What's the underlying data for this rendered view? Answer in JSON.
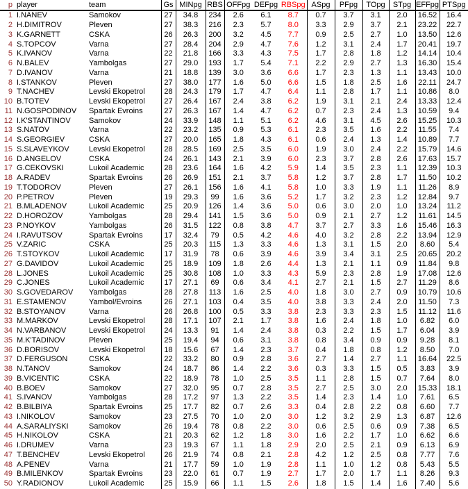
{
  "page": {
    "background": "#ffffff"
  },
  "colors": {
    "rank_text": "#993333",
    "highlight_column": "#ff0000",
    "body_text": "#000000",
    "grid_line": "#000000"
  },
  "table": {
    "headers": [
      "p",
      "player",
      "team",
      "Gs",
      "MINpg",
      "RBS",
      "OFFpg",
      "DEFpg",
      "RBSpg",
      "ASpg",
      "PFpg",
      "TOpg",
      "STpg",
      "EFFpg",
      "PTSpg"
    ],
    "highlighted_column": "RBSpg",
    "rows": [
      [
        "1",
        "I.NANEV",
        "Samokov",
        "27",
        "34.8",
        "234",
        "2.6",
        "6.1",
        "8.7",
        "0.7",
        "3.7",
        "3.1",
        "2.0",
        "16.52",
        "16.4"
      ],
      [
        "2",
        "H.DIMITROV",
        "Pleven",
        "27",
        "38.3",
        "216",
        "2.3",
        "5.7",
        "8.0",
        "3.3",
        "2.9",
        "3.7",
        "2.1",
        "23.22",
        "22.7"
      ],
      [
        "3",
        "K.GARNETT",
        "CSKA",
        "26",
        "26.3",
        "200",
        "3.2",
        "4.5",
        "7.7",
        "0.9",
        "2.5",
        "2.7",
        "1.0",
        "13.50",
        "12.6"
      ],
      [
        "4",
        "S.TOPCOV",
        "Varna",
        "27",
        "28.4",
        "204",
        "2.9",
        "4.7",
        "7.6",
        "1.2",
        "3.1",
        "2.4",
        "1.7",
        "20.41",
        "19.7"
      ],
      [
        "5",
        "K.IVANOV",
        "Varna",
        "22",
        "21.8",
        "166",
        "3.3",
        "4.3",
        "7.5",
        "1.7",
        "2.8",
        "1.8",
        "1.2",
        "14.14",
        "10.4"
      ],
      [
        "6",
        "N.BALEV",
        "Yambolgas",
        "27",
        "29.0",
        "193",
        "1.7",
        "5.4",
        "7.1",
        "2.2",
        "2.9",
        "2.7",
        "1.3",
        "16.30",
        "15.4"
      ],
      [
        "7",
        "D.IVANOV",
        "Varna",
        "21",
        "18.8",
        "139",
        "3.0",
        "3.6",
        "6.6",
        "1.7",
        "2.3",
        "1.3",
        "1.1",
        "13.43",
        "10.0"
      ],
      [
        "8",
        "I.STANKOV",
        "Pleven",
        "27",
        "38.0",
        "177",
        "1.6",
        "5.0",
        "6.6",
        "1.5",
        "1.8",
        "2.5",
        "1.6",
        "22.11",
        "24.7"
      ],
      [
        "9",
        "T.NACHEV",
        "Levski Ekopetrol",
        "28",
        "24.3",
        "179",
        "1.7",
        "4.7",
        "6.4",
        "1.1",
        "2.8",
        "1.7",
        "1.1",
        "10.86",
        "8.0"
      ],
      [
        "10",
        "B.TOTEV",
        "Levski Ekopetrol",
        "27",
        "26.4",
        "167",
        "2.4",
        "3.8",
        "6.2",
        "1.9",
        "3.1",
        "2.1",
        "2.4",
        "13.33",
        "12.4"
      ],
      [
        "11",
        "N.GOSPODINOV",
        "Spartak Evroins",
        "27",
        "26.3",
        "167",
        "1.4",
        "4.7",
        "6.2",
        "0.7",
        "2.3",
        "2.4",
        "1.3",
        "10.59",
        "9.4"
      ],
      [
        "12",
        "I.K'STANTINOV",
        "Samokov",
        "24",
        "33.9",
        "148",
        "1.1",
        "5.1",
        "6.2",
        "4.6",
        "3.1",
        "4.5",
        "2.6",
        "15.25",
        "10.3"
      ],
      [
        "13",
        "S.NATOV",
        "Varna",
        "22",
        "23.2",
        "135",
        "0.9",
        "5.3",
        "6.1",
        "2.3",
        "3.5",
        "1.6",
        "2.2",
        "11.55",
        "7.4"
      ],
      [
        "14",
        "S.GEORGIEV",
        "CSKA",
        "27",
        "20.0",
        "165",
        "1.8",
        "4.3",
        "6.1",
        "0.6",
        "2.4",
        "1.3",
        "1.4",
        "10.89",
        "7.7"
      ],
      [
        "15",
        "S.SLAVEYKOV",
        "Levski Ekopetrol",
        "28",
        "28.5",
        "169",
        "2.5",
        "3.5",
        "6.0",
        "1.9",
        "3.0",
        "2.4",
        "2.2",
        "15.79",
        "14.6"
      ],
      [
        "16",
        "D.ANGELOV",
        "CSKA",
        "24",
        "26.1",
        "143",
        "2.1",
        "3.9",
        "6.0",
        "2.3",
        "3.7",
        "2.8",
        "2.6",
        "17.63",
        "15.7"
      ],
      [
        "17",
        "G.CEKOVSKI",
        "Lukoil Academic",
        "28",
        "23.6",
        "164",
        "1.6",
        "4.2",
        "5.9",
        "1.4",
        "3.5",
        "2.3",
        "1.1",
        "12.39",
        "10.3"
      ],
      [
        "18",
        "A.RADEV",
        "Spartak Evroins",
        "26",
        "26.9",
        "151",
        "2.1",
        "3.7",
        "5.8",
        "1.2",
        "3.7",
        "2.8",
        "1.7",
        "11.50",
        "10.2"
      ],
      [
        "19",
        "T.TODOROV",
        "Pleven",
        "27",
        "26.1",
        "156",
        "1.6",
        "4.1",
        "5.8",
        "1.0",
        "3.3",
        "1.9",
        "1.1",
        "11.26",
        "8.9"
      ],
      [
        "20",
        "P.PETROV",
        "Pleven",
        "19",
        "29.3",
        "99",
        "1.6",
        "3.6",
        "5.2",
        "1.7",
        "3.2",
        "2.3",
        "1.2",
        "12.84",
        "9.7"
      ],
      [
        "21",
        "B.MLADENOV",
        "Lukoil Academic",
        "25",
        "20.9",
        "126",
        "1.4",
        "3.6",
        "5.0",
        "0.6",
        "3.0",
        "2.0",
        "1.0",
        "13.24",
        "11.2"
      ],
      [
        "22",
        "D.HOROZOV",
        "Yambolgas",
        "28",
        "29.4",
        "141",
        "1.5",
        "3.6",
        "5.0",
        "0.9",
        "2.1",
        "2.7",
        "1.2",
        "11.61",
        "14.5"
      ],
      [
        "23",
        "P.NOYKOV",
        "Yambolgas",
        "26",
        "31.5",
        "122",
        "0.8",
        "3.8",
        "4.7",
        "3.7",
        "2.7",
        "3.3",
        "1.6",
        "15.46",
        "16.3"
      ],
      [
        "24",
        "I.RAVUTSOV",
        "Spartak Evroins",
        "17",
        "32.4",
        "79",
        "0.5",
        "4.2",
        "4.6",
        "4.0",
        "3.2",
        "2.8",
        "2.2",
        "13.94",
        "12.9"
      ],
      [
        "25",
        "V.ZARIC",
        "CSKA",
        "25",
        "20.3",
        "115",
        "1.3",
        "3.3",
        "4.6",
        "1.3",
        "3.1",
        "1.5",
        "2.0",
        "8.60",
        "5.4"
      ],
      [
        "26",
        "T.STOYKOV",
        "Lukoil Academic",
        "17",
        "31.9",
        "78",
        "0.6",
        "3.9",
        "4.6",
        "3.9",
        "3.4",
        "3.1",
        "2.5",
        "20.65",
        "20.2"
      ],
      [
        "27",
        "G.DAVIDOV",
        "Lukoil Academic",
        "25",
        "18.9",
        "109",
        "1.8",
        "2.6",
        "4.4",
        "1.3",
        "2.1",
        "1.1",
        "0.9",
        "11.84",
        "9.8"
      ],
      [
        "28",
        "L.JONES",
        "Lukoil Academic",
        "25",
        "30.8",
        "108",
        "1.0",
        "3.3",
        "4.3",
        "5.9",
        "2.3",
        "2.8",
        "1.9",
        "17.08",
        "12.6"
      ],
      [
        "29",
        "C.JONES",
        "Lukoil Academic",
        "17",
        "27.1",
        "69",
        "0.6",
        "3.4",
        "4.1",
        "2.7",
        "2.1",
        "1.5",
        "2.7",
        "11.29",
        "8.6"
      ],
      [
        "30",
        "S.GOVEDAROV",
        "Yambolgas",
        "28",
        "27.8",
        "113",
        "1.6",
        "2.5",
        "4.0",
        "1.8",
        "3.0",
        "2.7",
        "0.9",
        "10.79",
        "10.6"
      ],
      [
        "31",
        "E.STAMENOV",
        "Yambol/Evroins",
        "26",
        "27.1",
        "103",
        "0.4",
        "3.5",
        "4.0",
        "3.8",
        "3.3",
        "2.4",
        "2.0",
        "11.50",
        "7.3"
      ],
      [
        "32",
        "B.STOYANOV",
        "Varna",
        "26",
        "26.8",
        "100",
        "0.5",
        "3.3",
        "3.8",
        "2.3",
        "3.3",
        "2.3",
        "1.5",
        "11.12",
        "11.6"
      ],
      [
        "33",
        "M.MARKOV",
        "Levski Ekopetrol",
        "28",
        "17.1",
        "107",
        "2.1",
        "1.7",
        "3.8",
        "1.6",
        "2.4",
        "1.8",
        "1.0",
        "6.82",
        "6.0"
      ],
      [
        "34",
        "N.VARBANOV",
        "Levski Ekopetrol",
        "24",
        "13.3",
        "91",
        "1.4",
        "2.4",
        "3.8",
        "0.3",
        "2.2",
        "1.5",
        "1.7",
        "6.04",
        "3.9"
      ],
      [
        "35",
        "M.K'TADINOV",
        "Pleven",
        "25",
        "19.4",
        "94",
        "0.6",
        "3.1",
        "3.8",
        "0.8",
        "3.4",
        "0.9",
        "0.9",
        "9.28",
        "8.1"
      ],
      [
        "36",
        "D.BORISOV",
        "Levski Ekopetrol",
        "18",
        "15.6",
        "67",
        "1.4",
        "2.3",
        "3.7",
        "0.4",
        "1.8",
        "0.8",
        "1.2",
        "8.50",
        "7.0"
      ],
      [
        "37",
        "D.FERGUSON",
        "CSKA",
        "22",
        "33.2",
        "80",
        "0.9",
        "2.8",
        "3.6",
        "2.7",
        "1.4",
        "2.7",
        "1.1",
        "16.64",
        "22.5"
      ],
      [
        "38",
        "N.TANOV",
        "Samokov",
        "24",
        "18.7",
        "86",
        "1.4",
        "2.2",
        "3.6",
        "0.3",
        "3.3",
        "1.5",
        "0.5",
        "3.83",
        "3.9"
      ],
      [
        "39",
        "B.VICENTIC",
        "CSKA",
        "22",
        "18.9",
        "78",
        "1.0",
        "2.5",
        "3.5",
        "1.1",
        "2.8",
        "1.5",
        "0.7",
        "7.64",
        "8.0"
      ],
      [
        "40",
        "B.BOEV",
        "Samokov",
        "27",
        "32.0",
        "95",
        "0.7",
        "2.8",
        "3.5",
        "2.7",
        "2.5",
        "3.0",
        "2.0",
        "15.33",
        "18.1"
      ],
      [
        "41",
        "S.IVANOV",
        "Yambolgas",
        "28",
        "17.2",
        "97",
        "1.3",
        "2.2",
        "3.5",
        "1.4",
        "2.3",
        "1.4",
        "1.0",
        "7.61",
        "6.5"
      ],
      [
        "42",
        "B.BILBIYA",
        "Spartak Evroins",
        "25",
        "17.7",
        "82",
        "0.7",
        "2.6",
        "3.3",
        "0.4",
        "2.8",
        "2.2",
        "0.8",
        "6.60",
        "7.7"
      ],
      [
        "43",
        "I.NIKOLOV",
        "Samokov",
        "23",
        "27.5",
        "70",
        "1.0",
        "2.0",
        "3.0",
        "1.2",
        "3.2",
        "2.9",
        "1.3",
        "6.87",
        "12.6"
      ],
      [
        "44",
        "A.SARALIYSKI",
        "Samokov",
        "26",
        "19.4",
        "78",
        "0.8",
        "2.2",
        "3.0",
        "0.6",
        "2.5",
        "0.6",
        "0.9",
        "7.38",
        "6.5"
      ],
      [
        "45",
        "H.NIKOLOV",
        "CSKA",
        "21",
        "20.3",
        "62",
        "1.2",
        "1.8",
        "3.0",
        "1.6",
        "2.2",
        "1.7",
        "1.0",
        "6.62",
        "6.6"
      ],
      [
        "46",
        "I.DRUMEV",
        "Varna",
        "23",
        "19.3",
        "67",
        "1.1",
        "1.8",
        "2.9",
        "2.0",
        "2.5",
        "2.1",
        "0.9",
        "6.13",
        "6.9"
      ],
      [
        "47",
        "T.BENCHEV",
        "Levski Ekopetrol",
        "26",
        "21.9",
        "74",
        "0.8",
        "2.1",
        "2.8",
        "4.2",
        "1.2",
        "2.5",
        "0.8",
        "7.77",
        "7.6"
      ],
      [
        "48",
        "A.PENEV",
        "Varna",
        "21",
        "17.7",
        "59",
        "1.0",
        "1.9",
        "2.8",
        "1.1",
        "1.0",
        "1.2",
        "0.8",
        "5.43",
        "5.5"
      ],
      [
        "49",
        "B.MILENKOV",
        "Spartak Evroins",
        "23",
        "22.0",
        "61",
        "0.7",
        "1.9",
        "2.7",
        "1.7",
        "2.0",
        "1.7",
        "1.1",
        "8.26",
        "9.3"
      ],
      [
        "50",
        "Y.RADIONOV",
        "Lukoil Academic",
        "25",
        "15.9",
        "66",
        "1.1",
        "1.5",
        "2.6",
        "1.8",
        "1.5",
        "1.4",
        "1.6",
        "7.40",
        "5.6"
      ]
    ]
  }
}
